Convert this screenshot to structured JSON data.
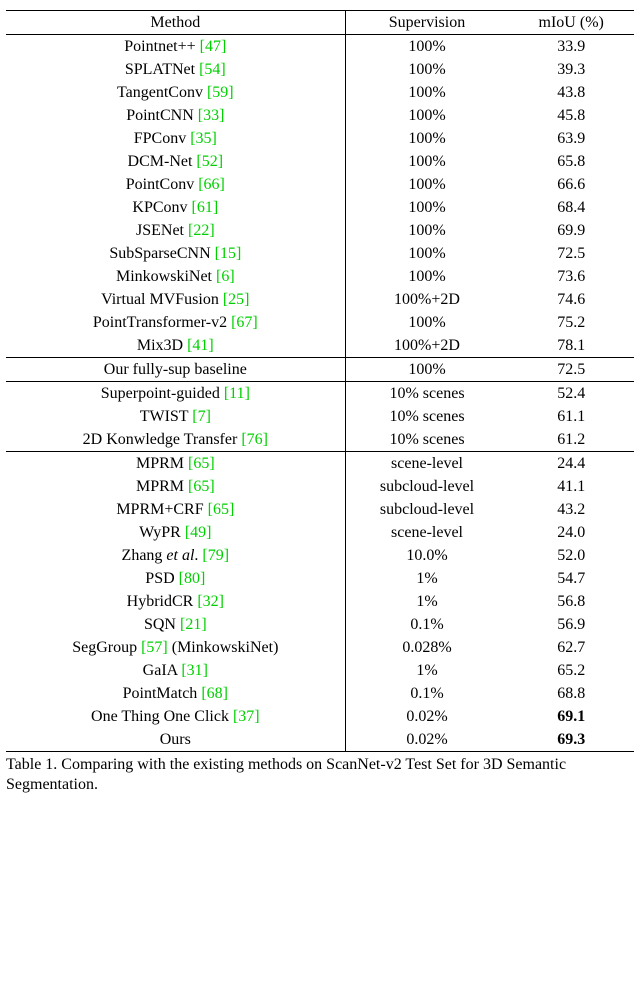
{
  "header": {
    "method": "Method",
    "supervision": "Supervision",
    "miou": "mIoU (%)"
  },
  "sections": [
    {
      "rows": [
        {
          "name": "Pointnet++ ",
          "cite": "[47]",
          "sup": "100%",
          "miou": "33.9"
        },
        {
          "name": "SPLATNet ",
          "cite": "[54]",
          "sup": "100%",
          "miou": "39.3"
        },
        {
          "name": "TangentConv ",
          "cite": "[59]",
          "sup": "100%",
          "miou": "43.8"
        },
        {
          "name": "PointCNN ",
          "cite": "[33]",
          "sup": "100%",
          "miou": "45.8"
        },
        {
          "name": "FPConv ",
          "cite": "[35]",
          "sup": "100%",
          "miou": "63.9"
        },
        {
          "name": "DCM-Net ",
          "cite": "[52]",
          "sup": "100%",
          "miou": "65.8"
        },
        {
          "name": "PointConv ",
          "cite": "[66]",
          "sup": "100%",
          "miou": "66.6"
        },
        {
          "name": "KPConv ",
          "cite": "[61]",
          "sup": "100%",
          "miou": "68.4"
        },
        {
          "name": "JSENet ",
          "cite": "[22]",
          "sup": "100%",
          "miou": "69.9"
        },
        {
          "name": "SubSparseCNN ",
          "cite": "[15]",
          "sup": "100%",
          "miou": "72.5"
        },
        {
          "name": "MinkowskiNet ",
          "cite": "[6]",
          "sup": "100%",
          "miou": "73.6"
        },
        {
          "name": "Virtual MVFusion ",
          "cite": "[25]",
          "sup": "100%+2D",
          "miou": "74.6"
        },
        {
          "name": "PointTransformer-v2 ",
          "cite": "[67]",
          "sup": "100%",
          "miou": "75.2"
        },
        {
          "name": "Mix3D ",
          "cite": "[41]",
          "sup": "100%+2D",
          "miou": "78.1"
        }
      ]
    },
    {
      "rows": [
        {
          "name": "Our fully-sup baseline",
          "cite": "",
          "sup": "100%",
          "miou": "72.5"
        }
      ]
    },
    {
      "rows": [
        {
          "name": "Superpoint-guided ",
          "cite": "[11]",
          "sup": "10% scenes",
          "miou": "52.4"
        },
        {
          "name": "TWIST ",
          "cite": "[7]",
          "sup": "10% scenes",
          "miou": "61.1"
        },
        {
          "name": "2D Konwledge Transfer ",
          "cite": "[76]",
          "sup": "10% scenes",
          "miou": "61.2"
        }
      ]
    },
    {
      "rows": [
        {
          "name": "MPRM ",
          "cite": "[65]",
          "sup": "scene-level",
          "miou": "24.4"
        },
        {
          "name": "MPRM ",
          "cite": "[65]",
          "sup": "subcloud-level",
          "miou": "41.1"
        },
        {
          "name": "MPRM+CRF ",
          "cite": "[65]",
          "sup": "subcloud-level",
          "miou": "43.2"
        },
        {
          "name": "WyPR ",
          "cite": "[49]",
          "sup": "scene-level",
          "miou": "24.0"
        },
        {
          "name_pre": "Zhang ",
          "name_ital": "et al",
          "name_post": ". ",
          "cite": "[79]",
          "sup": "10.0%",
          "miou": "52.0"
        },
        {
          "name": "PSD ",
          "cite": "[80]",
          "sup": "1%",
          "miou": "54.7"
        },
        {
          "name": "HybridCR ",
          "cite": "[32]",
          "sup": "1%",
          "miou": "56.8"
        },
        {
          "name": "SQN ",
          "cite": "[21]",
          "sup": "0.1%",
          "miou": "56.9"
        },
        {
          "name": "SegGroup ",
          "cite": "[57]",
          "name_suffix": " (MinkowskiNet)",
          "sup": "0.028%",
          "miou": "62.7"
        },
        {
          "name": "GaIA ",
          "cite": "[31]",
          "sup": "1%",
          "miou": "65.2"
        },
        {
          "name": "PointMatch ",
          "cite": "[68]",
          "sup": "0.1%",
          "miou": "68.8"
        },
        {
          "name": "One Thing One Click ",
          "cite": "[37]",
          "sup": "0.02%",
          "miou": "69.1",
          "bold_miou": true
        },
        {
          "name": "Ours",
          "cite": "",
          "sup": "0.02%",
          "miou": "69.3",
          "bold_miou": true
        }
      ]
    }
  ],
  "caption": "Table 1. Comparing with the existing methods on ScanNet-v2 Test Set for 3D Semantic Segmentation.",
  "style": {
    "cite_color": "#00d000",
    "font_family": "Times New Roman",
    "font_size_pt": 12,
    "col_widths_pct": [
      54,
      26,
      20
    ],
    "background_color": "#ffffff",
    "text_color": "#000000",
    "rule_color": "#000000"
  }
}
